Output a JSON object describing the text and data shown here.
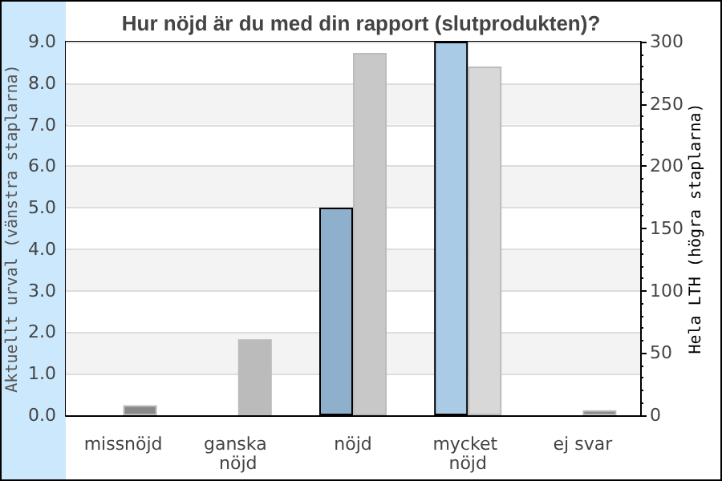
{
  "chart_data": {
    "type": "bar",
    "title": "Hur nöjd är du med din rapport (slutprodukten)?",
    "ylabel": "Aktuellt urval (vänstra staplarna)",
    "y2label": "Hela LTH (högra staplarna)",
    "categories": [
      "missnöjd",
      "ganska nöjd",
      "nöjd",
      "mycket nöjd",
      "ej svar"
    ],
    "series": [
      {
        "colors": [
          "#8fb0cc",
          "#8fb0cc",
          "#8fb0cc",
          "#aacbe6",
          "#8fb0cc"
        ],
        "values": [
          0,
          0,
          5.0,
          9.0,
          0
        ]
      },
      {
        "axis": "y2",
        "colors": [
          "#888888",
          "#bbbbbb",
          "#c8c8c8",
          "#d8d8d8",
          "#888888"
        ],
        "values": [
          8,
          61,
          291,
          280,
          4
        ]
      }
    ],
    "ylim": [
      0,
      9
    ],
    "yticks": [
      {
        "value": 0,
        "label": "0.0"
      },
      {
        "value": 1,
        "label": "1.0"
      },
      {
        "value": 2,
        "label": "2.0"
      },
      {
        "value": 3,
        "label": "3.0"
      },
      {
        "value": 4,
        "label": "4.0"
      },
      {
        "value": 5,
        "label": "5.0"
      },
      {
        "value": 6,
        "label": "6.0"
      },
      {
        "value": 7,
        "label": "7.0"
      },
      {
        "value": 8,
        "label": "8.0"
      },
      {
        "value": 9,
        "label": "9.0"
      }
    ],
    "y2lim": [
      0,
      300
    ],
    "y2ticks": [
      0,
      50,
      100,
      150,
      200,
      250,
      300
    ],
    "grid": "y"
  }
}
